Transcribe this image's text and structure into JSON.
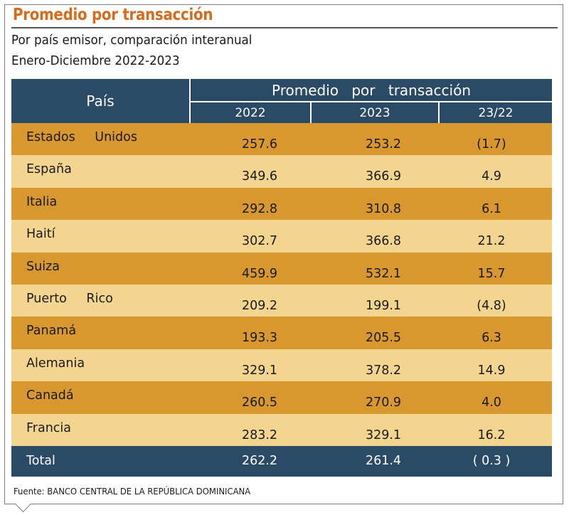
{
  "title": "Promedio por transacción",
  "subtitle_line1": "Por país emisor, comparación interanual",
  "subtitle_line2": "Enero-Diciembre 2022-2023",
  "source": "Fuente: BANCO CENTRAL DE LA REPÚBLICA DOMINICANA",
  "colors": {
    "title": "#d86a1b",
    "header_bg": "#2b4a66",
    "row_dark": "#d9982f",
    "row_light": "#f3d58f"
  },
  "chart_data": {
    "type": "table",
    "title": "Promedio por transacción",
    "header": {
      "country": "País",
      "group": "Promedio por transacción",
      "col_2022": "2022",
      "col_2023": "2023",
      "col_change": "23/22"
    },
    "rows": [
      {
        "country": "Estados Unidos",
        "y2022": "257.6",
        "y2023": "253.2",
        "change": "(1.7)"
      },
      {
        "country": "España",
        "y2022": "349.6",
        "y2023": "366.9",
        "change": "4.9"
      },
      {
        "country": "Italia",
        "y2022": "292.8",
        "y2023": "310.8",
        "change": "6.1"
      },
      {
        "country": "Haití",
        "y2022": "302.7",
        "y2023": "366.8",
        "change": "21.2"
      },
      {
        "country": "Suiza",
        "y2022": "459.9",
        "y2023": "532.1",
        "change": "15.7"
      },
      {
        "country": "Puerto Rico",
        "y2022": "209.2",
        "y2023": "199.1",
        "change": "(4.8)"
      },
      {
        "country": "Panamá",
        "y2022": "193.3",
        "y2023": "205.5",
        "change": "6.3"
      },
      {
        "country": "Alemania",
        "y2022": "329.1",
        "y2023": "378.2",
        "change": "14.9"
      },
      {
        "country": "Canadá",
        "y2022": "260.5",
        "y2023": "270.9",
        "change": "4.0"
      },
      {
        "country": "Francia",
        "y2022": "283.2",
        "y2023": "329.1",
        "change": "16.2"
      }
    ],
    "total": {
      "label": "Total",
      "y2022": "262.2",
      "y2023": "261.4",
      "change": "( 0.3 )"
    }
  }
}
